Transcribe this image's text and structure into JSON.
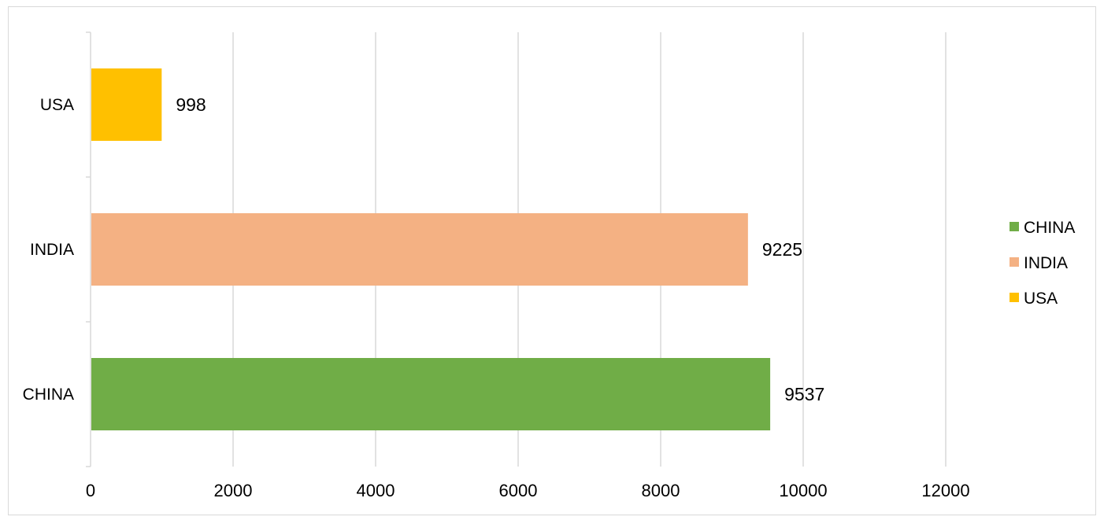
{
  "chart_data": {
    "type": "bar",
    "orientation": "horizontal",
    "title": "",
    "xlabel": "",
    "ylabel": "",
    "categories": [
      "USA",
      "INDIA",
      "CHINA"
    ],
    "values": [
      998,
      9225,
      9537
    ],
    "colors": [
      "#FFC000",
      "#F4B183",
      "#70AD47"
    ],
    "xlim": [
      0,
      12000
    ],
    "xticks": [
      0,
      2000,
      4000,
      6000,
      8000,
      10000,
      12000
    ],
    "grid": "vertical",
    "data_labels": true,
    "legend": {
      "position": "right",
      "entries": [
        {
          "label": "CHINA",
          "color": "#70AD47"
        },
        {
          "label": "INDIA",
          "color": "#F4B183"
        },
        {
          "label": "USA",
          "color": "#FFC000"
        }
      ]
    }
  }
}
